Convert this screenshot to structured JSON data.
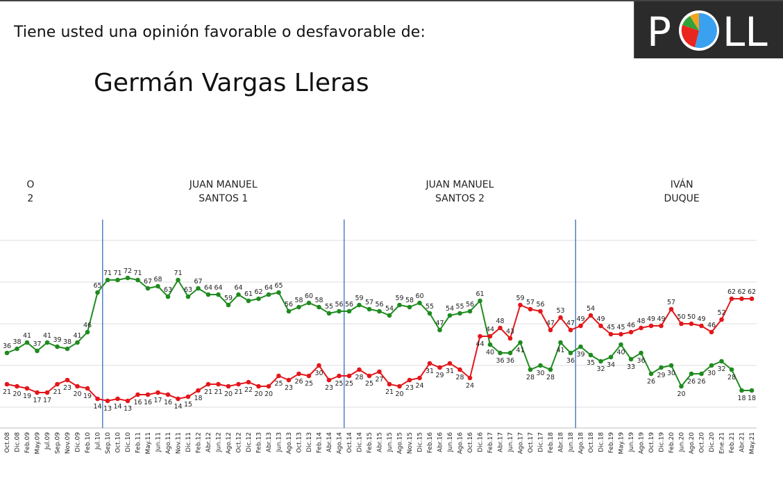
{
  "header": {
    "question": "Tiene usted una opinión favorable o desfavorable de:",
    "person": "Germán Vargas Lleras"
  },
  "logo": {
    "letters": [
      "P",
      "LL"
    ],
    "pie_colors": [
      "#3aa0f0",
      "#e8261f",
      "#2fa33a",
      "#f2a31c"
    ]
  },
  "colors": {
    "favorable": "#1f8b1f",
    "desfavorable": "#e3171b",
    "divider": "#4f7fc8",
    "grid": "#dcdcdc"
  },
  "periods": [
    {
      "lines": [
        "O",
        "2"
      ]
    },
    {
      "lines": [
        "JUAN MANUEL",
        "SANTOS 1"
      ]
    },
    {
      "lines": [
        "JUAN MANUEL",
        "SANTOS 2"
      ]
    },
    {
      "lines": [
        "IVÁN",
        "DUQUE"
      ]
    }
  ],
  "chart_data": {
    "type": "line",
    "x": [
      "Oct.08",
      "Dic.08",
      "Feb.09",
      "May.09",
      "Jul.09",
      "Sep.09",
      "Nov.09",
      "Dic.09",
      "Feb.10",
      "Jul.10",
      "Sep.10",
      "Oct.10",
      "Dic.10",
      "Feb.11",
      "May.11",
      "Jun.11",
      "Ago.11",
      "Nov.11",
      "Dic.11",
      "Feb.12",
      "Abr.12",
      "Jun.12",
      "Ago.12",
      "Oct.12",
      "Dic.12",
      "Feb.13",
      "Abr.13",
      "Jun.13",
      "Ago.13",
      "Oct.13",
      "Dic.13",
      "Feb.14",
      "Abr.14",
      "Ago.14",
      "Oct.14",
      "Dic.14",
      "Feb.15",
      "Abr.15",
      "Jun.15",
      "Ago.15",
      "Nov.15",
      "Dic.15",
      "Feb.16",
      "Abr.16",
      "Jun.16",
      "Ago.16",
      "Oct.16",
      "Dic.16",
      "Feb.17",
      "Abr.17",
      "Jun.17",
      "Ago.17",
      "Oct.17",
      "Dic.17",
      "Feb.18",
      "Abr.18",
      "Jun.18",
      "Ago.18",
      "Oct.18",
      "Dic.18",
      "Feb.19",
      "May.19",
      "Jun.19",
      "Ago.19",
      "Oct.19",
      "Dic.19",
      "Feb.20",
      "Jun.20",
      "Ago.20",
      "Oct.20",
      "Dic.20",
      "Ene.21",
      "Feb.21",
      "Abr.21",
      "May.21"
    ],
    "series": [
      {
        "color": "#1f8b1f",
        "values": [
          36,
          38,
          41,
          37,
          41,
          39,
          38,
          41,
          46,
          65,
          71,
          71,
          72,
          71,
          67,
          68,
          63,
          71,
          63,
          67,
          64,
          64,
          59,
          64,
          61,
          62,
          64,
          65,
          56,
          58,
          60,
          58,
          55,
          56,
          56,
          59,
          57,
          56,
          54,
          59,
          58,
          60,
          55,
          47,
          54,
          55,
          56,
          61,
          40,
          36,
          36,
          41,
          28,
          30,
          28,
          41,
          36,
          39,
          35,
          32,
          34,
          40,
          33,
          36,
          26,
          29,
          30,
          20,
          26,
          26,
          30,
          32,
          28,
          18,
          18
        ]
      },
      {
        "color": "#e3171b",
        "values": [
          21,
          20,
          19,
          17,
          17,
          21,
          23,
          20,
          19,
          14,
          13,
          14,
          13,
          16,
          16,
          17,
          16,
          14,
          15,
          18,
          21,
          21,
          20,
          21,
          22,
          20,
          20,
          25,
          23,
          26,
          25,
          30,
          23,
          25,
          25,
          28,
          25,
          27,
          21,
          20,
          23,
          24,
          31,
          29,
          31,
          28,
          24,
          44,
          44,
          48,
          43,
          59,
          57,
          56,
          47,
          53,
          47,
          49,
          54,
          49,
          45,
          45,
          46,
          48,
          49,
          49,
          57,
          50,
          50,
          49,
          46,
          52,
          62,
          62,
          62
        ]
      }
    ],
    "ylim": [
      0,
      100
    ],
    "gridlines": [
      10,
      30,
      50,
      70,
      90
    ],
    "period_breaks_after": [
      "Jul.10",
      "Ago.14",
      "Jun.18"
    ],
    "legend": "none"
  }
}
